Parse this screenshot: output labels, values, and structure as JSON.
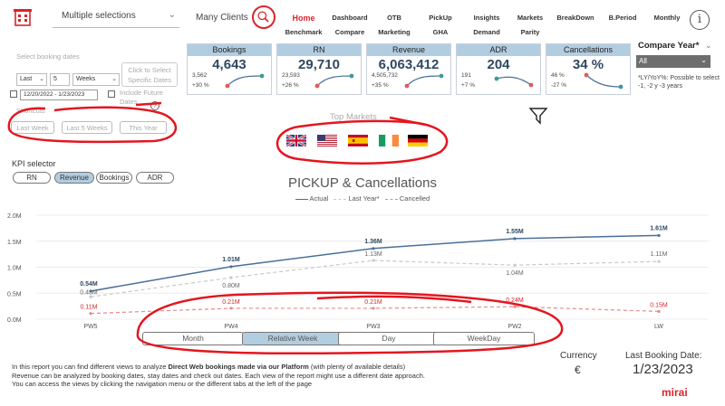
{
  "topbar": {
    "hotel_selector": "Multiple selections",
    "clients": "Many Clients",
    "nav": [
      {
        "label": "Home",
        "sub": "Benchmark"
      },
      {
        "label": "Dashboard",
        "sub": "Compare"
      },
      {
        "label": "OTB",
        "sub": "Marketing"
      },
      {
        "label": "PickUp",
        "sub": "GHA"
      },
      {
        "label": "Insights",
        "sub": "Demand"
      },
      {
        "label": "Markets",
        "sub": "Parity"
      },
      {
        "label": "BreakDown",
        "sub": ""
      },
      {
        "label": "B.Period",
        "sub": ""
      },
      {
        "label": "Monthly",
        "sub": ""
      }
    ],
    "info_glyph": "i"
  },
  "filters": {
    "booking_dates_label": "Select booking dates",
    "period_mode": "Last",
    "period_count": "5",
    "period_unit": "Weeks",
    "click_select": "Click to Select Specific Dates",
    "date_range": "12/20/2022 - 1/23/2023",
    "include_future": "Include Future Dates",
    "shortcuts_label": "Shortcuts",
    "shortcuts": [
      "Last Week",
      "Last 5 Weeks",
      "This Year"
    ]
  },
  "kpis": [
    {
      "title": "Bookings",
      "value": "4,643",
      "ly": "3,562",
      "pct": "+30 %"
    },
    {
      "title": "RN",
      "value": "29,710",
      "ly": "23,593",
      "pct": "+26 %"
    },
    {
      "title": "Revenue",
      "value": "6,063,412",
      "ly": "4,505,732",
      "pct": "+35 %"
    },
    {
      "title": "ADR",
      "value": "204",
      "ly": "191",
      "pct": "+7 %"
    },
    {
      "title": "Cancellations",
      "value": "34 %",
      "ly": "46 %",
      "pct": "-27 %"
    }
  ],
  "compare": {
    "title": "Compare Year*",
    "value": "All",
    "note": "*LY/YoY%: Possible to select -1, -2 y -3 years"
  },
  "markets": {
    "title": "Top Markets",
    "flags": [
      "uk-flag",
      "us-flag",
      "spain-flag",
      "ireland-flag",
      "germany-flag"
    ]
  },
  "kpi_selector": {
    "title": "KPI selector",
    "options": [
      "RN",
      "Revenue",
      "Bookings",
      "ADR"
    ],
    "selected": "Revenue"
  },
  "chart_data": {
    "type": "line",
    "title": "PICKUP & Cancellations",
    "categories": [
      "PW5",
      "PW4",
      "PW3",
      "PW2",
      "LW"
    ],
    "ylim": [
      0,
      2.0
    ],
    "yticks": [
      "0.0M",
      "0.5M",
      "1.0M",
      "1.5M",
      "2.0M"
    ],
    "series": [
      {
        "name": "Actual",
        "color": "#4a6f9a",
        "values": [
          0.54,
          1.01,
          1.36,
          1.55,
          1.61
        ],
        "labels": [
          "0.54M",
          "1.01M",
          "1.36M",
          "1.55M",
          "1.61M"
        ]
      },
      {
        "name": "Last Year*",
        "color": "#c8c8c8",
        "values": [
          0.43,
          0.8,
          1.13,
          1.04,
          1.11
        ],
        "labels": [
          "0.43M",
          "0.80M",
          "1.13M",
          "1.04M",
          "1.11M"
        ]
      },
      {
        "name": "Cancelled",
        "color": "#e88a8a",
        "values": [
          0.11,
          0.21,
          0.21,
          0.24,
          0.15
        ],
        "labels": [
          "0.11M",
          "0.21M",
          "0.21M",
          "0.24M",
          "0.15M"
        ]
      }
    ],
    "grid": true,
    "legend": "top-center"
  },
  "periods": {
    "options": [
      "Month",
      "Relative Week",
      "Day",
      "WeekDay"
    ],
    "selected": "Relative Week"
  },
  "footer": {
    "line1_pre": "In this report you can find different views to analyze ",
    "line1_bold": "Direct Web bookings made via our Platform",
    "line1_post": " (with plenty of available details)",
    "line2": "Revenue can be analyzed by booking dates, stay dates and check out dates. Each view of the report might use a different date approach.",
    "line3": "You can access the views by clicking the navigation menu or the different tabs at the left of the page",
    "currency_label": "Currency",
    "currency_value": "€",
    "last_booking_label": "Last Booking Date:",
    "last_booking_value": "1/23/2023",
    "logo": "mirai"
  },
  "colors": {
    "accent": "#d9242b",
    "header_blue": "#b3cde0",
    "actual": "#4a6f9a",
    "annotation": "#e3161f"
  }
}
